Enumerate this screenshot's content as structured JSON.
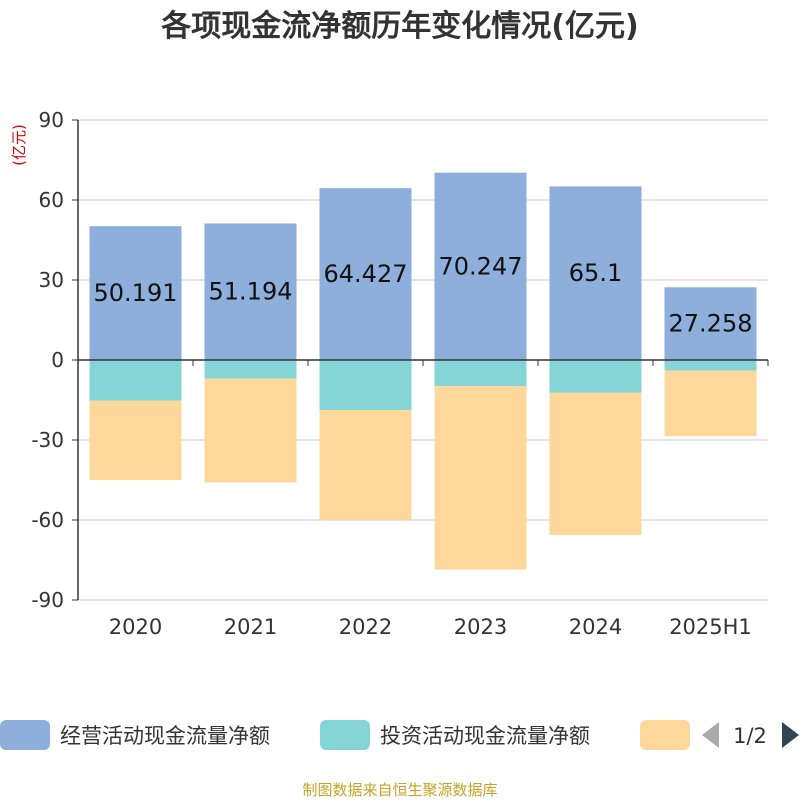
{
  "title": "各项现金流净额历年变化情况(亿元)",
  "source": "制图数据来自恒生聚源数据库",
  "colors": {
    "operating": "#8eaedb",
    "investing": "#86d5d6",
    "financing": "#fdd89a",
    "axis": "#333333",
    "grid": "#cccccc",
    "unit": "#dd0000",
    "pager_active": "#2f4554",
    "pager_inactive": "#aaaaaa"
  },
  "legend": {
    "page": "1/2",
    "prev_icon": "triangle-left",
    "next_icon": "triangle-right"
  },
  "chart_data": {
    "type": "bar",
    "stacked": true,
    "categories": [
      "2020",
      "2021",
      "2022",
      "2023",
      "2024",
      "2025H1"
    ],
    "ylabel": "(亿元)",
    "ylim": [
      -90,
      90
    ],
    "yticks": [
      -90,
      -60,
      -30,
      0,
      30,
      60,
      90
    ],
    "grid": true,
    "legend_position": "bottom",
    "series": [
      {
        "name": "经营活动现金流量净额",
        "color": "#8eaedb",
        "values": [
          50.191,
          51.194,
          64.427,
          70.247,
          65.1,
          27.258
        ],
        "labels": [
          "50.191",
          "51.194",
          "64.427",
          "70.247",
          "65.1",
          "27.258"
        ]
      },
      {
        "name": "投资活动现金流量净额",
        "color": "#86d5d6",
        "values": [
          -15.2,
          -7.0,
          -18.8,
          -9.8,
          -12.3,
          -4.0
        ]
      },
      {
        "name": "",
        "color": "#fdd89a",
        "values": [
          -29.8,
          -38.9,
          -41.1,
          -68.8,
          -53.3,
          -24.5
        ]
      }
    ]
  }
}
